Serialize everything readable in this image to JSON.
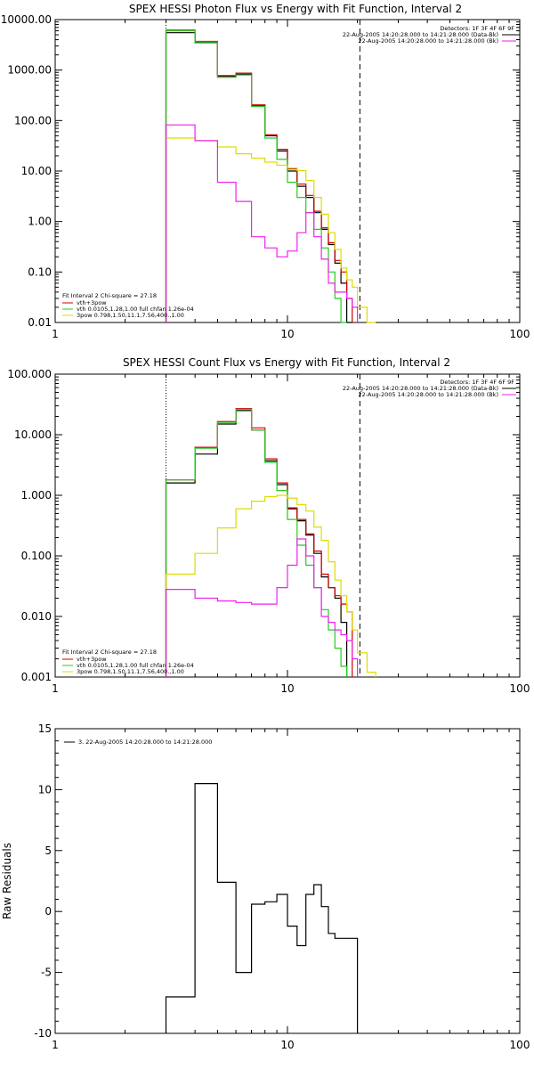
{
  "chart_data": [
    {
      "type": "line",
      "title": "SPEX HESSI Photon Flux vs Energy with Fit Function, Interval 2",
      "xscale": "log",
      "yscale": "log",
      "xlim": [
        1,
        100
      ],
      "ylim": [
        0.01,
        10000
      ],
      "xtick_labels": [
        "1",
        "10",
        "100"
      ],
      "ytick_labels": [
        "10000.00",
        "1000.00",
        "100.00",
        "10.00",
        "1.00",
        "0.10",
        "0.01"
      ],
      "ytick_values": [
        10000,
        1000,
        100,
        10,
        1,
        0.1,
        0.01
      ],
      "header_text": [
        "Detectors: 1F 3F 4F 6F 9F",
        "22-Aug-2005 14:20:28.000 to 14:21:28.000 (Data-Bk)",
        "22-Aug-2005 14:20:28.000 to 14:21:28.000 (Bk)"
      ],
      "footer_text": [
        "Fit Interval 2   Chi-square = 27.18",
        "vth+3pow",
        "vth 0.0105,1.28,1.00  full chfan 1.26e-04",
        "3pow 0.798,1.50,11.1,7.56,400.,1.00"
      ],
      "vlines": [
        {
          "x": 3,
          "style": "dotted"
        },
        {
          "x": 20.5,
          "style": "dashed"
        }
      ],
      "edges": [
        3,
        4,
        5,
        6,
        7,
        8,
        9,
        10,
        11,
        12,
        13,
        14,
        15,
        16,
        17,
        18,
        19,
        20,
        22,
        24,
        26,
        28
      ],
      "series": [
        {
          "name": "Data-Bk",
          "color": "#000000",
          "values": [
            5500,
            3500,
            750,
            830,
            200,
            50,
            25,
            10,
            5,
            3,
            1.5,
            0.7,
            0.35,
            0.15,
            0.06,
            0.01,
            null,
            null,
            null,
            null,
            null
          ]
        },
        {
          "name": "vth+3pow",
          "color": "#cc0000",
          "values": [
            6200,
            3700,
            780,
            870,
            205,
            52,
            27,
            11,
            5.5,
            3.3,
            1.6,
            0.75,
            0.38,
            0.17,
            0.1,
            0.03,
            null,
            null,
            null,
            null,
            null
          ]
        },
        {
          "name": "vth",
          "color": "#22cc22",
          "values": [
            6000,
            3600,
            720,
            800,
            190,
            45,
            17,
            6,
            3,
            1.5,
            0.7,
            0.3,
            0.1,
            0.03,
            0.01,
            null,
            null,
            null,
            null,
            null,
            null
          ]
        },
        {
          "name": "3pow",
          "color": "#dddd00",
          "values": [
            45,
            40,
            30,
            22,
            18,
            15,
            13,
            11.5,
            10.2,
            6.5,
            3,
            1.4,
            0.6,
            0.28,
            0.12,
            0.07,
            0.05,
            0.02,
            0.01,
            null,
            null
          ]
        },
        {
          "name": "Bk",
          "color": "#ee22ee",
          "values": [
            82,
            40,
            6,
            2.5,
            0.5,
            0.3,
            0.2,
            0.26,
            0.6,
            1.5,
            0.5,
            0.18,
            0.06,
            0.04,
            0.04,
            0.03,
            0.02,
            null,
            null,
            null,
            null
          ]
        }
      ]
    },
    {
      "type": "line",
      "title": "SPEX HESSI Count Flux vs Energy with Fit Function, Interval 2",
      "xscale": "log",
      "yscale": "log",
      "xlim": [
        1,
        100
      ],
      "ylim": [
        0.001,
        100
      ],
      "xtick_labels": [
        "1",
        "10",
        "100"
      ],
      "ytick_labels": [
        "100.000",
        "10.000",
        "1.000",
        "0.100",
        "0.010",
        "0.001"
      ],
      "ytick_values": [
        100,
        10,
        1,
        0.1,
        0.01,
        0.001
      ],
      "header_text": [
        "Detectors: 1F 3F 4F 6F 9F",
        "22-Aug-2005 14:20:28.000 to 14:21:28.000 (Data-Bk)",
        "22-Aug-2005 14:20:28.000 to 14:21:28.000 (Bk)"
      ],
      "footer_text": [
        "Fit Interval 2   Chi-square = 27.18",
        "vth+3pow",
        "vth 0.0105,1.28,1.00  full chfan 1.26e-04",
        "3pow 0.798,1.50,11.1,7.56,400.,1.00"
      ],
      "vlines": [
        {
          "x": 3,
          "style": "dotted"
        },
        {
          "x": 20.5,
          "style": "dashed"
        }
      ],
      "edges": [
        3,
        4,
        5,
        6,
        7,
        8,
        9,
        10,
        11,
        12,
        13,
        14,
        15,
        16,
        17,
        18,
        19,
        20,
        22,
        24,
        26,
        28
      ],
      "series": [
        {
          "name": "Data-Bk",
          "color": "#000000",
          "values": [
            1.6,
            4.8,
            15,
            25,
            12,
            3.7,
            1.5,
            0.6,
            0.38,
            0.22,
            0.11,
            0.045,
            0.03,
            0.02,
            0.008,
            null,
            null,
            null,
            null,
            null,
            null
          ]
        },
        {
          "name": "vth+3pow",
          "color": "#cc0000",
          "values": [
            1.8,
            6.2,
            16.5,
            27,
            13,
            4,
            1.6,
            0.62,
            0.4,
            0.23,
            0.12,
            0.05,
            0.03,
            0.022,
            0.016,
            0.012,
            null,
            null,
            null,
            null,
            null
          ]
        },
        {
          "name": "vth",
          "color": "#22cc22",
          "values": [
            1.8,
            6,
            16,
            26,
            12,
            3.5,
            1.2,
            0.4,
            0.15,
            0.07,
            0.03,
            0.013,
            0.006,
            0.003,
            0.0015,
            null,
            null,
            null,
            null,
            null,
            null
          ]
        },
        {
          "name": "3pow",
          "color": "#dddd00",
          "values": [
            0.05,
            0.11,
            0.29,
            0.6,
            0.8,
            0.95,
            1.0,
            0.9,
            0.7,
            0.55,
            0.3,
            0.18,
            0.08,
            0.04,
            0.022,
            0.012,
            0.006,
            0.0025,
            0.0012,
            null,
            null
          ]
        },
        {
          "name": "Bk",
          "color": "#ee22ee",
          "values": [
            0.028,
            0.02,
            0.018,
            0.017,
            0.016,
            0.016,
            0.03,
            0.07,
            0.19,
            0.1,
            0.03,
            0.01,
            0.008,
            0.006,
            0.005,
            0.004,
            0.002,
            null,
            null,
            null,
            null
          ]
        }
      ]
    },
    {
      "type": "line",
      "title": "",
      "ylabel": "Raw Residuals",
      "xscale": "log",
      "yscale": "linear",
      "xlim": [
        1,
        100
      ],
      "ylim": [
        -10,
        15
      ],
      "xtick_labels": [
        "1",
        "10",
        "100"
      ],
      "ytick_labels": [
        "15",
        "10",
        "5",
        "0",
        "-5",
        "-10"
      ],
      "ytick_values": [
        15,
        10,
        5,
        0,
        -5,
        -10
      ],
      "legend_text": "3. 22-Aug-2005 14:20:28.000 to 14:21:28.000",
      "edges": [
        3,
        4,
        5,
        6,
        7,
        8,
        9,
        10,
        11,
        12,
        13,
        14,
        15,
        16,
        17,
        18,
        19,
        20
      ],
      "series": [
        {
          "name": "3. 22-Aug-2005 14:20:28.000 to 14:21:28.000",
          "color": "#000000",
          "values": [
            -7,
            10.5,
            2.4,
            -5,
            0.6,
            0.8,
            1.4,
            -1.2,
            -2.8,
            1.4,
            2.2,
            0.4,
            -1.8,
            -2.2,
            -2.2,
            -2.2,
            -2.2
          ]
        }
      ]
    }
  ]
}
